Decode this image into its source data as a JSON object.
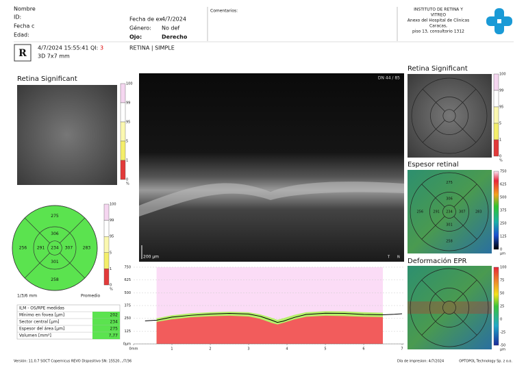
{
  "header": {
    "name_label": "Nombre",
    "id_label": "ID:",
    "date_label": "Fecha c",
    "age_label": "Edad:",
    "exam_date_label": "Fecha de ex",
    "exam_date": "4/7/2024",
    "gender_label": "Género:",
    "gender": "No def",
    "eye_label": "Ojo:",
    "eye": "Derecho",
    "comments_label": "Comentarios:",
    "institute": [
      "INSTITUTO DE RETINA Y",
      "VITREO",
      "Anexo del Hospital de Clinicas",
      "Caracas,",
      "piso 13, consultorio 1312"
    ]
  },
  "scan": {
    "eye": "R",
    "datetime": "4/7/2024 15:55:41",
    "qi_label": "QI:",
    "qi": "3",
    "protocol": "3D  7x7 mm",
    "mode": "RETINA | SIMPLE"
  },
  "left": {
    "title": "Retina Significant",
    "map_scale": [
      100,
      99,
      95,
      5,
      1,
      0,
      "%"
    ],
    "grid_values": [
      275,
      306,
      256,
      291,
      234,
      307,
      283,
      301,
      258
    ],
    "grid_scale": [
      100,
      99,
      95,
      5,
      1,
      0,
      "%"
    ],
    "rings": "1/3/6 mm",
    "average": "Promedio",
    "table": {
      "title": "ILM - OS/RPE medidas",
      "rows": [
        [
          "Mínimo en fovea [µm]",
          "202"
        ],
        [
          "Sector central [µm]",
          "234"
        ],
        [
          "Espesor del área [µm]",
          "275"
        ],
        [
          "Volumen [mm³]",
          "7,77"
        ]
      ]
    }
  },
  "bscan": {
    "slice": "DN  44 / 85",
    "scale": "200 µm",
    "t": "T",
    "n": "N"
  },
  "right": {
    "significance": {
      "title": "Retina Significant",
      "scale": [
        100,
        99,
        95,
        5,
        1,
        0,
        "%"
      ]
    },
    "thickness": {
      "title": "Espesor retinal",
      "grid_values": [
        275,
        306,
        256,
        291,
        234,
        307,
        283,
        301,
        258
      ],
      "scale": [
        750,
        625,
        500,
        375,
        250,
        125,
        0,
        "µm"
      ]
    },
    "epr": {
      "title": "Deformación EPR",
      "scale": [
        100,
        75,
        50,
        25,
        0,
        -25,
        -50,
        "µm"
      ]
    }
  },
  "profile": {
    "type": "area",
    "xlim": [
      0,
      7
    ],
    "ylim": [
      0,
      750
    ],
    "xticks": [
      {
        "value": 0,
        "label": "0mm"
      },
      1,
      2,
      3,
      4,
      5,
      6,
      7
    ],
    "yticks": [
      {
        "value": 0,
        "label": "0µm"
      },
      125,
      250,
      375,
      500,
      625,
      750
    ],
    "x": [
      0.3,
      0.6,
      1,
      1.5,
      2,
      2.5,
      3,
      3.3,
      3.6,
      3.75,
      3.9,
      4.2,
      4.5,
      5,
      5.5,
      6,
      6.5,
      6.8,
      7
    ],
    "series": [
      {
        "color": "#f25c5c",
        "values": [
          null,
          215,
          240,
          260,
          270,
          275,
          268,
          245,
          205,
          190,
          205,
          240,
          265,
          275,
          272,
          265,
          262,
          null,
          null
        ]
      },
      {
        "color": "#b6f06a",
        "values": [
          null,
          250,
          280,
          300,
          310,
          315,
          310,
          290,
          255,
          235,
          250,
          285,
          310,
          320,
          318,
          310,
          305,
          null,
          null
        ]
      },
      {
        "color": "#000000",
        "values": [
          225,
          232,
          262,
          280,
          292,
          298,
          292,
          270,
          232,
          210,
          222,
          260,
          288,
          300,
          298,
          288,
          285,
          290,
          295
        ]
      }
    ]
  },
  "footer": {
    "version": "Versión: 11.0.7    SOCT Copernicus REVO    Dispositivo SN: 15520.../7/36",
    "print_date": "Día de impresion: 4/7/2024",
    "company": "OPTOPOL Technology Sp. z o.o."
  }
}
